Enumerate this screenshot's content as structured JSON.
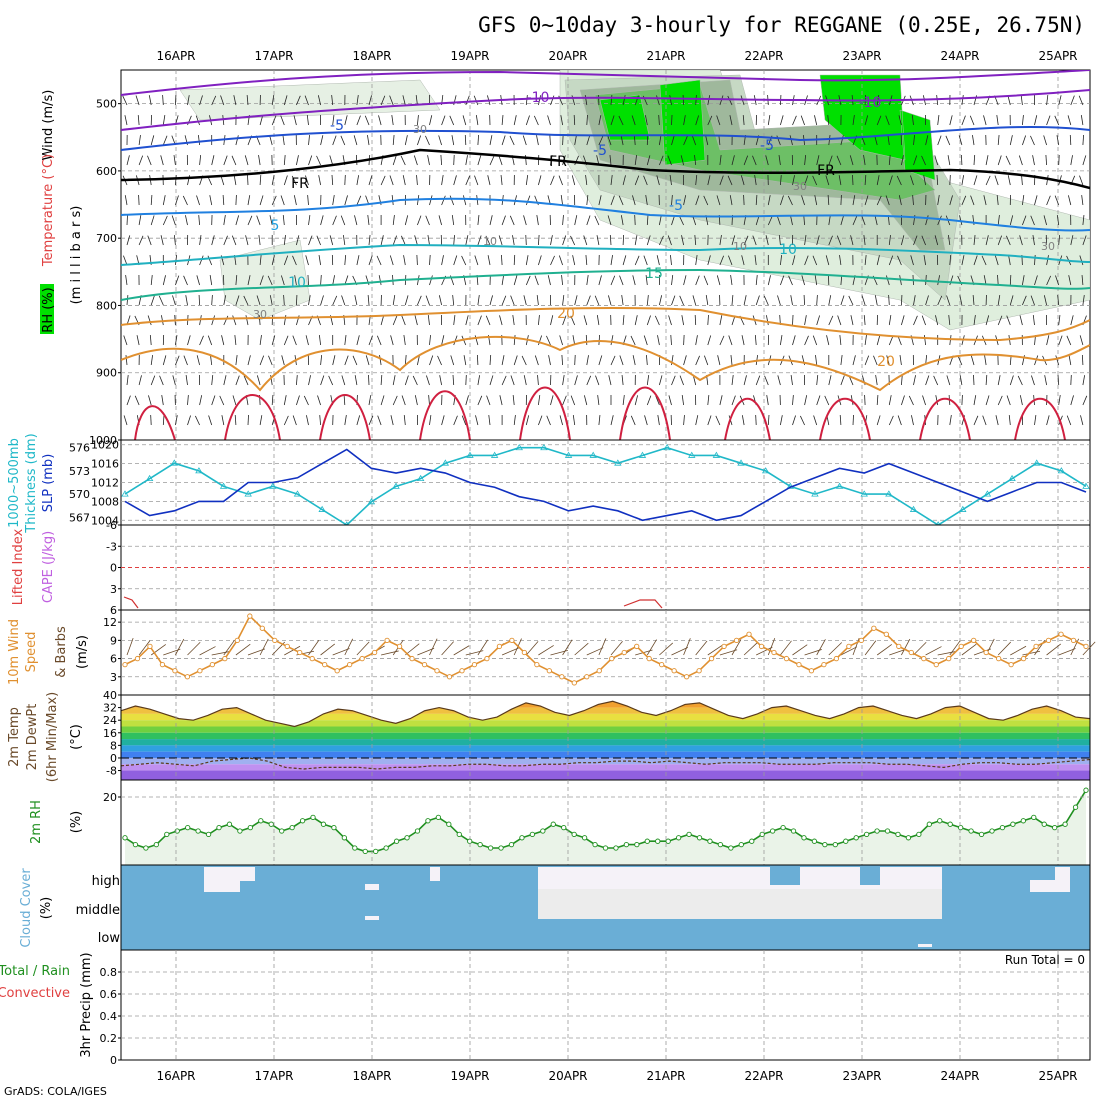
{
  "title": "GFS 0~10day 3-hourly for REGGANE (0.25E, 26.75N)",
  "credit": "GrADS: COLA/IGES",
  "dates": [
    "16APR",
    "17APR",
    "18APR",
    "19APR",
    "20APR",
    "21APR",
    "22APR",
    "23APR",
    "24APR",
    "25APR"
  ],
  "colors": {
    "rh_green": "#00ff00",
    "wind_contour": "#808080",
    "thickness": "#20b8c8",
    "slp": "#1030c0",
    "wind10": "#e09030",
    "temp_fill_hot": "#e04020",
    "dewpt": "#8040c0",
    "rh2m": "#209020",
    "cloud": "#6aaed6"
  },
  "chart_data": [
    {
      "type": "heatmap",
      "panel": "upper-air",
      "ylabels": [
        "Wind (m/s)",
        "Temperature (°C)",
        "RH (%)",
        "(m i l l i b a r s)"
      ],
      "yticks": [
        "500",
        "600",
        "700",
        "800",
        "900",
        "1000"
      ],
      "ylim": [
        1000,
        450
      ],
      "contour_labels": [
        {
          "text": "-10",
          "color": "#8020c0"
        },
        {
          "text": "-10",
          "color": "#8020c0"
        },
        {
          "text": "-5",
          "color": "#2050d0"
        },
        {
          "text": "-5",
          "color": "#2050d0"
        },
        {
          "text": "-5",
          "color": "#2050d0"
        },
        {
          "text": "-5",
          "color": "#2080e0"
        },
        {
          "text": "FR",
          "color": "#000000"
        },
        {
          "text": "FR",
          "color": "#000000"
        },
        {
          "text": "FR",
          "color": "#000000"
        },
        {
          "text": "5",
          "color": "#20a0e0"
        },
        {
          "text": "10",
          "color": "#20b0c0"
        },
        {
          "text": "10",
          "color": "#20b0c0"
        },
        {
          "text": "15",
          "color": "#20b090"
        },
        {
          "text": "20",
          "color": "#e09030"
        },
        {
          "text": "20",
          "color": "#e09030"
        },
        {
          "text": "30",
          "color": "#808080"
        },
        {
          "text": "30",
          "color": "#808080"
        },
        {
          "text": "30",
          "color": "#808080"
        },
        {
          "text": "10",
          "color": "#808080"
        },
        {
          "text": "10",
          "color": "#808080"
        },
        {
          "text": "30",
          "color": "#808080"
        }
      ]
    },
    {
      "type": "line",
      "panel": "thickness-slp",
      "ylabels": [
        "1000~500mb",
        "Thickness (dm)",
        "SLP (mb)"
      ],
      "yticks_left": [
        "576",
        "573",
        "570",
        "567"
      ],
      "yticks_right": [
        "1020",
        "1016",
        "1012",
        "1008",
        "1004"
      ],
      "series": [
        {
          "name": "Thickness (dm)",
          "values": [
            570,
            572,
            574,
            573,
            571,
            570,
            571,
            570,
            568,
            566,
            569,
            571,
            572,
            574,
            575,
            575,
            576,
            576,
            575,
            575,
            574,
            575,
            576,
            575,
            575,
            574,
            573,
            571,
            570,
            571,
            570,
            570,
            568,
            566,
            568,
            570,
            572,
            574,
            573,
            571
          ],
          "ylim": [
            566,
            577
          ]
        },
        {
          "name": "SLP (mb)",
          "values": [
            1008,
            1005,
            1006,
            1008,
            1008,
            1012,
            1012,
            1013,
            1016,
            1019,
            1015,
            1014,
            1015,
            1014,
            1012,
            1011,
            1009,
            1008,
            1006,
            1007,
            1006,
            1004,
            1005,
            1006,
            1004,
            1005,
            1008,
            1011,
            1013,
            1015,
            1014,
            1016,
            1014,
            1012,
            1010,
            1008,
            1010,
            1012,
            1012,
            1010
          ],
          "ylim": [
            1003,
            1021
          ]
        }
      ]
    },
    {
      "type": "line",
      "panel": "lifted-cape",
      "ylabels": [
        "Lifted Index",
        "CAPE (J/kg)"
      ],
      "yticks": [
        "-6",
        "-3",
        "0",
        "3",
        "6"
      ],
      "ylim": [
        -6,
        6
      ]
    },
    {
      "type": "line",
      "panel": "wind10m",
      "ylabels": [
        "10m Wind",
        "Speed",
        "(m/s)",
        "& Barbs"
      ],
      "yticks": [
        "12",
        "9",
        "6",
        "3"
      ],
      "ylim": [
        0,
        14
      ],
      "series": [
        {
          "name": "10m Wind Speed",
          "values": [
            5,
            6,
            8,
            5,
            4,
            3,
            4,
            5,
            6,
            9,
            13,
            11,
            9,
            8,
            7,
            6,
            5,
            4,
            5,
            6,
            7,
            9,
            8,
            6,
            5,
            4,
            3,
            4,
            5,
            6,
            8,
            9,
            7,
            5,
            4,
            3,
            2,
            3,
            4,
            6,
            7,
            8,
            6,
            5,
            4,
            3,
            4,
            6,
            8,
            9,
            10,
            8,
            7,
            6,
            5,
            4,
            5,
            6,
            8,
            9,
            11,
            10,
            8,
            7,
            6,
            5,
            6,
            8,
            9,
            7,
            6,
            5,
            6,
            8,
            9,
            10,
            9,
            8
          ]
        }
      ]
    },
    {
      "type": "area",
      "panel": "temp2m",
      "ylabels": [
        "2m Temp",
        "2m DewPt",
        "(6hr Min/Max)",
        "(°C)"
      ],
      "yticks": [
        "40",
        "32",
        "24",
        "16",
        "8",
        "0",
        "-8"
      ],
      "ylim": [
        -14,
        40
      ],
      "series": [
        {
          "name": "2m Temp",
          "values": [
            30,
            33,
            31,
            28,
            25,
            24,
            27,
            31,
            32,
            28,
            24,
            22,
            20,
            23,
            28,
            31,
            30,
            27,
            24,
            22,
            25,
            30,
            32,
            30,
            26,
            24,
            26,
            31,
            35,
            33,
            29,
            27,
            30,
            34,
            36,
            33,
            29,
            27,
            30,
            34,
            35,
            31,
            27,
            25,
            28,
            32,
            33,
            30,
            27,
            25,
            28,
            32,
            33,
            30,
            27,
            25,
            28,
            32,
            33,
            29,
            25,
            24,
            27,
            31,
            33,
            30,
            26,
            25
          ]
        },
        {
          "name": "2m DewPt",
          "values": [
            -5,
            -4,
            -3,
            -4,
            -5,
            -2,
            -1,
            0,
            -2,
            -6,
            -7,
            -6,
            -6,
            -6,
            -7,
            -6,
            -6,
            -5,
            -5,
            -4,
            -4,
            -5,
            -5,
            -4,
            -4,
            -3,
            -3,
            -2,
            -2,
            -3,
            -2,
            -3,
            -4,
            -3,
            -3,
            -3,
            -4,
            -4,
            -4,
            -3,
            -3,
            -3,
            -4,
            -4,
            -5,
            -6,
            -4,
            -3,
            -3,
            -4,
            -4,
            -3,
            -2,
            -1
          ]
        }
      ]
    },
    {
      "type": "area",
      "panel": "rh2m",
      "ylabels": [
        "2m RH",
        "(%)"
      ],
      "yticks": [
        "20"
      ],
      "ylim": [
        0,
        25
      ],
      "series": [
        {
          "name": "2m RH",
          "values": [
            8,
            6,
            5,
            6,
            9,
            10,
            11,
            10,
            9,
            11,
            12,
            10,
            11,
            13,
            12,
            10,
            11,
            13,
            14,
            12,
            11,
            8,
            5,
            4,
            4,
            5,
            7,
            8,
            10,
            13,
            14,
            12,
            9,
            7,
            6,
            5,
            5,
            6,
            8,
            9,
            10,
            12,
            11,
            9,
            8,
            6,
            5,
            5,
            6,
            6,
            7,
            7,
            7,
            8,
            9,
            8,
            7,
            6,
            5,
            6,
            7,
            9,
            10,
            11,
            10,
            8,
            7,
            6,
            6,
            7,
            8,
            9,
            10,
            10,
            9,
            8,
            9,
            12,
            13,
            12,
            11,
            10,
            9,
            10,
            11,
            12,
            13,
            14,
            12,
            11,
            12,
            17,
            22
          ]
        }
      ]
    },
    {
      "type": "heatmap",
      "panel": "cloud-cover",
      "ylabels": [
        "Cloud Cover",
        "(%)"
      ],
      "yticks": [
        "high",
        "middle",
        "low"
      ]
    },
    {
      "type": "line",
      "panel": "precip",
      "ylabels": [
        "Total / Rain",
        "Convective",
        "3hr Precip (mm)"
      ],
      "yticks": [
        "0.8",
        "0.6",
        "0.4",
        "0.2",
        "0"
      ],
      "ylim": [
        0,
        1
      ],
      "annotation": "Run Total = 0"
    }
  ]
}
